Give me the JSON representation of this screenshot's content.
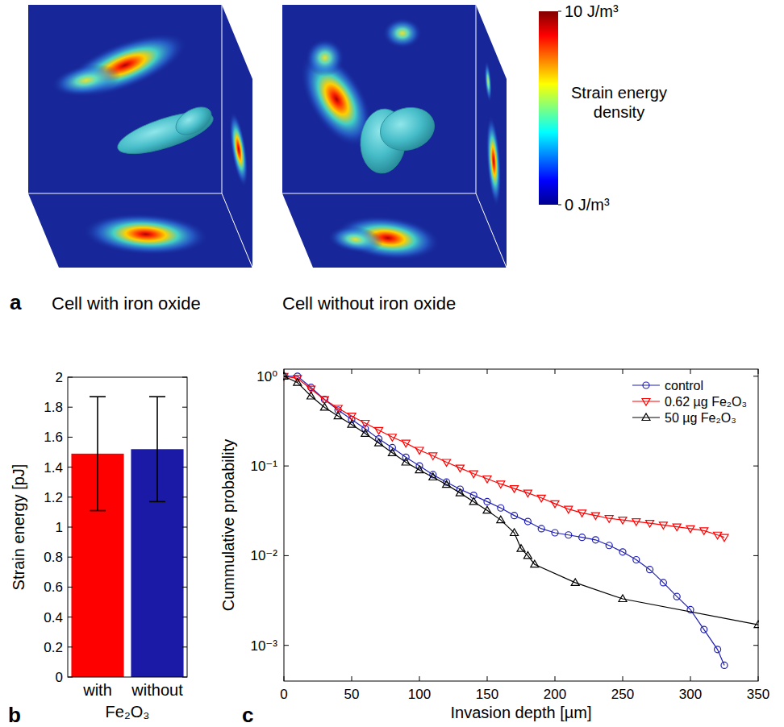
{
  "chart_data": [
    {
      "type": "volume",
      "panel": "a",
      "captions": [
        "Cell with iron oxide",
        "Cell without iron oxide"
      ],
      "colorbar": {
        "label": "Strain energy density",
        "lim": [
          0,
          10
        ],
        "ticks": [
          {
            "value": 0,
            "label": "0 J/m³"
          },
          {
            "value": 10,
            "label": "10 J/m³"
          }
        ]
      }
    },
    {
      "type": "bar",
      "panel": "b",
      "categories": [
        "with",
        "without"
      ],
      "xlabel": "Fe₂O₃",
      "ylabel": "Strain energy [pJ]",
      "values": [
        1.49,
        1.52
      ],
      "errors": [
        0.38,
        0.35
      ],
      "colors": [
        "#ff0000",
        "#1a1aa6"
      ],
      "ylim": [
        0,
        2
      ],
      "yticks": [
        0,
        0.2,
        0.4,
        0.6,
        0.8,
        1,
        1.2,
        1.4,
        1.6,
        1.8,
        2
      ]
    },
    {
      "type": "line",
      "panel": "c",
      "log": "y",
      "legend": "upper right",
      "xlabel": "Invasion depth [µm]",
      "ylabel": "Cummulative probability",
      "xlim": [
        0,
        350
      ],
      "xticks": [
        0,
        50,
        100,
        150,
        200,
        250,
        300,
        350
      ],
      "ylim": [
        0.0004,
        1.2
      ],
      "yticks": [
        {
          "value": 0.001,
          "label": "10⁻³"
        },
        {
          "value": 0.01,
          "label": "10⁻²"
        },
        {
          "value": 0.1,
          "label": "10⁻¹"
        },
        {
          "value": 1,
          "label": "10⁰"
        }
      ],
      "series": [
        {
          "name": "control",
          "color": "#1f1fb4",
          "marker": "circle",
          "x": [
            0,
            10,
            20,
            30,
            40,
            50,
            60,
            70,
            80,
            90,
            100,
            110,
            120,
            130,
            140,
            150,
            160,
            170,
            180,
            190,
            200,
            210,
            220,
            230,
            240,
            250,
            260,
            270,
            280,
            290,
            300,
            310,
            320,
            325
          ],
          "values": [
            1,
            1,
            0.75,
            0.55,
            0.42,
            0.33,
            0.26,
            0.2,
            0.16,
            0.125,
            0.1,
            0.08,
            0.066,
            0.055,
            0.047,
            0.04,
            0.034,
            0.028,
            0.024,
            0.02,
            0.018,
            0.017,
            0.016,
            0.015,
            0.013,
            0.011,
            0.009,
            0.007,
            0.005,
            0.0035,
            0.0025,
            0.0015,
            0.0009,
            0.0006
          ]
        },
        {
          "name": "0.62 µg Fe₂O₃",
          "color": "#ff0000",
          "marker": "triangle-down",
          "x": [
            0,
            10,
            20,
            30,
            40,
            50,
            60,
            70,
            80,
            90,
            100,
            110,
            120,
            130,
            140,
            150,
            160,
            170,
            180,
            190,
            200,
            210,
            220,
            230,
            240,
            250,
            260,
            270,
            280,
            290,
            300,
            310,
            320,
            325
          ],
          "values": [
            1,
            0.95,
            0.72,
            0.55,
            0.44,
            0.36,
            0.3,
            0.25,
            0.21,
            0.18,
            0.15,
            0.13,
            0.11,
            0.095,
            0.082,
            0.072,
            0.063,
            0.056,
            0.05,
            0.044,
            0.038,
            0.033,
            0.03,
            0.028,
            0.026,
            0.025,
            0.024,
            0.023,
            0.022,
            0.021,
            0.02,
            0.019,
            0.017,
            0.016
          ]
        },
        {
          "name": "50 µg Fe₂O₃",
          "color": "#000000",
          "marker": "triangle-up",
          "x": [
            0,
            10,
            20,
            30,
            40,
            50,
            60,
            70,
            80,
            90,
            100,
            110,
            120,
            130,
            140,
            150,
            160,
            170,
            175,
            180,
            185,
            215,
            250,
            350
          ],
          "values": [
            1,
            0.85,
            0.6,
            0.45,
            0.36,
            0.29,
            0.23,
            0.18,
            0.14,
            0.11,
            0.09,
            0.075,
            0.062,
            0.05,
            0.04,
            0.032,
            0.025,
            0.018,
            0.012,
            0.01,
            0.008,
            0.005,
            0.0033,
            0.0017
          ]
        }
      ]
    }
  ]
}
